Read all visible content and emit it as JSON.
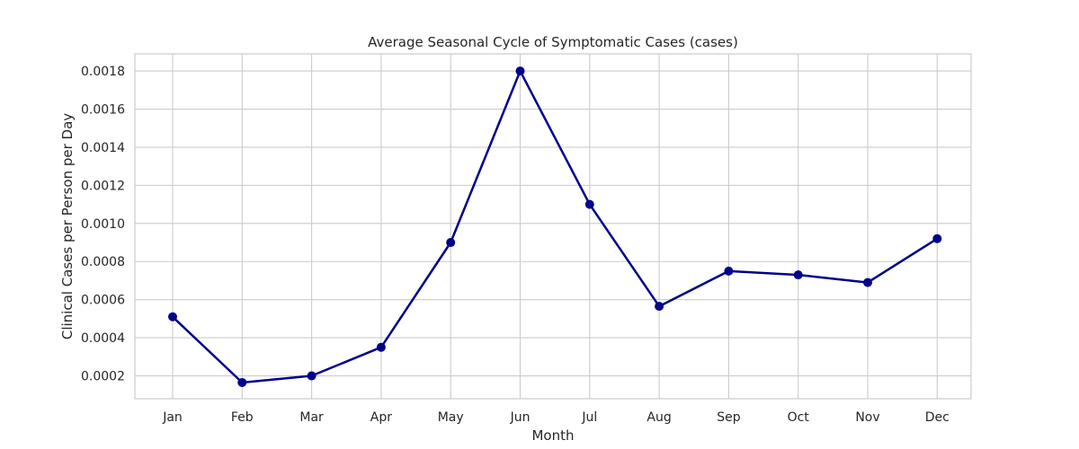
{
  "chart_data": {
    "type": "line",
    "title": "Average Seasonal Cycle of Symptomatic Cases (cases)",
    "xlabel": "Month",
    "ylabel": "Clinical Cases per Person per Day",
    "categories": [
      "Jan",
      "Feb",
      "Mar",
      "Apr",
      "May",
      "Jun",
      "Jul",
      "Aug",
      "Sep",
      "Oct",
      "Nov",
      "Dec"
    ],
    "values": [
      0.00051,
      0.000165,
      0.0002,
      0.00035,
      0.0009,
      0.0018,
      0.0011,
      0.000565,
      0.00075,
      0.00073,
      0.00069,
      0.00092
    ],
    "yticks": [
      "0.0002",
      "0.0004",
      "0.0006",
      "0.0008",
      "0.0010",
      "0.0012",
      "0.0014",
      "0.0016",
      "0.0018"
    ],
    "ylim": [
      8e-05,
      0.00189
    ],
    "grid": true,
    "line_color": "#00008b",
    "grid_color": "#cccccc"
  }
}
